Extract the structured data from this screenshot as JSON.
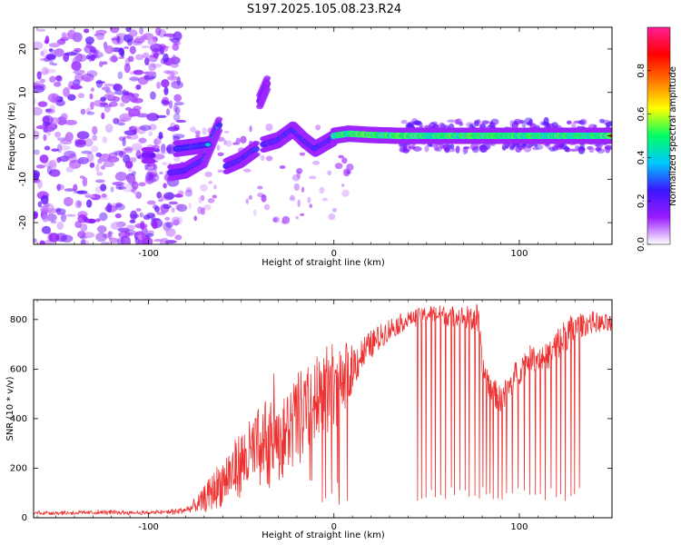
{
  "title": "S197.2025.105.08.23.R24",
  "colors": {
    "line": "#ef3030",
    "background": "#ffffff",
    "axis": "#000000"
  },
  "chart_data": [
    {
      "type": "heatmap",
      "name": "spectrogram",
      "xlabel": "Height of straight line (km)",
      "ylabel": "Frequency (Hz)",
      "xlim": [
        -162,
        150
      ],
      "ylim": [
        -25,
        25
      ],
      "x_ticks": [
        -100,
        0,
        100
      ],
      "x_tick_labels": [
        "-100",
        "0",
        "100"
      ],
      "y_ticks": [
        20,
        10,
        0,
        -10,
        -20
      ],
      "y_tick_labels": [
        "20",
        "10",
        "0",
        "-10",
        "-20"
      ],
      "colorbar": {
        "label": "Normalized spectral amplitude",
        "range": [
          0,
          1
        ],
        "ticks": [
          0.0,
          0.2,
          0.4,
          0.6,
          0.8
        ],
        "tick_labels": [
          "0.0",
          "0.2",
          "0.4",
          "0.6",
          "0.8"
        ],
        "stops": [
          "#ffffff",
          "#9a1cff",
          "#3a16ff",
          "#00c8ff",
          "#00ff64",
          "#ffff00",
          "#ff7800",
          "#ff0000",
          "#ff1e96"
        ]
      },
      "ridge": {
        "segments": [
          {
            "x": [
              -102,
              -98
            ],
            "y": [
              -4.5,
              -4.5
            ],
            "amp": 0.25
          },
          {
            "x": [
              -88,
              -80,
              -70,
              -62
            ],
            "y": [
              -8.5,
              -8,
              -5.5,
              2.5
            ],
            "amp": 0.35
          },
          {
            "x": [
              -85,
              -76,
              -68
            ],
            "y": [
              -3,
              -2.5,
              -2
            ],
            "amp": 0.4
          },
          {
            "x": [
              -58,
              -50,
              -42
            ],
            "y": [
              -7,
              -5.5,
              -3
            ],
            "amp": 0.35
          },
          {
            "x": [
              -40,
              -38,
              -36
            ],
            "y": [
              8,
              10,
              12
            ],
            "amp": 0.15
          },
          {
            "x": [
              -38,
              -30,
              -22,
              -16,
              -10,
              -6,
              0
            ],
            "y": [
              -2,
              -1,
              1.5,
              -1,
              -3,
              -2,
              -0.5
            ],
            "amp": 0.35
          },
          {
            "x": [
              0,
              8,
              20,
              35,
              60,
              100,
              150
            ],
            "y": [
              0,
              0.5,
              0.2,
              0,
              0,
              0,
              0
            ],
            "amp": 0.85
          }
        ]
      }
    },
    {
      "type": "line",
      "name": "snr",
      "xlabel": "Height of straight line (km)",
      "ylabel": "SNR (10 * v/v)",
      "xlim": [
        -162,
        150
      ],
      "ylim": [
        0,
        880
      ],
      "x_ticks": [
        -100,
        0,
        100
      ],
      "x_tick_labels": [
        "-100",
        "0",
        "100"
      ],
      "y_ticks": [
        0,
        200,
        400,
        600,
        800
      ],
      "y_tick_labels": [
        "0",
        "200",
        "400",
        "600",
        "800"
      ],
      "envelope": {
        "x": [
          -162,
          -140,
          -120,
          -100,
          -85,
          -78,
          -72,
          -65,
          -58,
          -50,
          -42,
          -35,
          -28,
          -20,
          -12,
          -5,
          0,
          10,
          20,
          30,
          40,
          50,
          60,
          70,
          78,
          80,
          85,
          90,
          95,
          100,
          105,
          110,
          115,
          120,
          125,
          130,
          135,
          140,
          145,
          150
        ],
        "y": [
          20,
          20,
          22,
          20,
          25,
          35,
          60,
          110,
          160,
          220,
          270,
          300,
          320,
          390,
          440,
          500,
          520,
          610,
          700,
          760,
          800,
          820,
          820,
          810,
          800,
          600,
          520,
          470,
          530,
          600,
          640,
          650,
          650,
          690,
          740,
          760,
          780,
          790,
          780,
          780
        ],
        "noise_fraction": [
          0.3,
          0.3,
          0.3,
          0.3,
          0.4,
          0.5,
          0.7,
          0.7,
          0.7,
          0.6,
          0.6,
          0.6,
          0.5,
          0.5,
          0.45,
          0.4,
          0.35,
          0.15,
          0.08,
          0.06,
          0.04,
          0.04,
          0.05,
          0.05,
          0.08,
          0.1,
          0.1,
          0.12,
          0.12,
          0.1,
          0.08,
          0.08,
          0.08,
          0.1,
          0.1,
          0.08,
          0.06,
          0.05,
          0.05,
          0.05
        ]
      },
      "dropouts": {
        "x_start": 45,
        "x_end": 133,
        "depth_min": 60,
        "depth_max": 130
      }
    }
  ]
}
